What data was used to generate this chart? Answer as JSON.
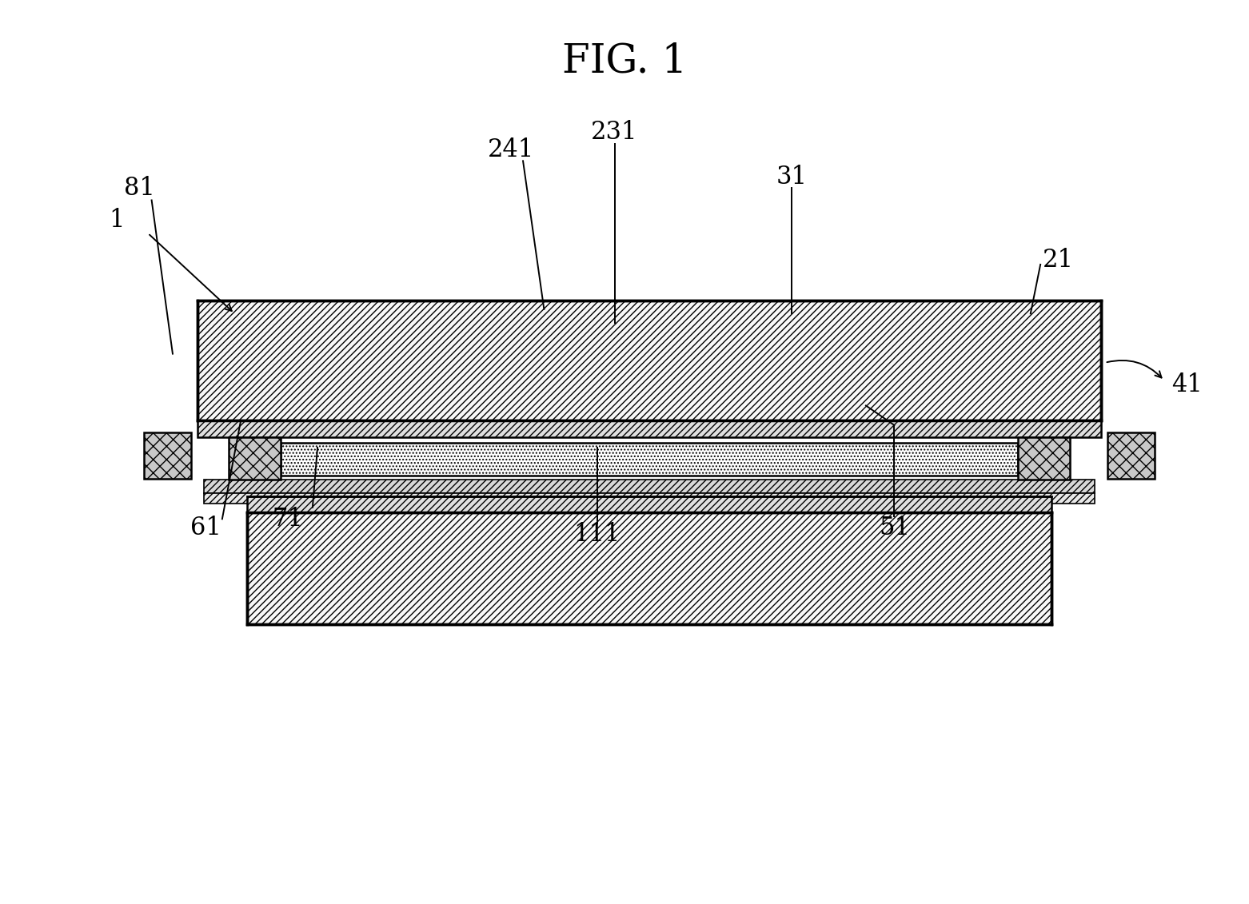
{
  "title": "FIG. 1",
  "title_fontsize": 36,
  "bg_color": "#ffffff",
  "label_color": "#000000",
  "line_color": "#000000",
  "figsize": [
    15.62,
    11.31
  ],
  "dpi": 100,
  "label_fontsize": 22
}
